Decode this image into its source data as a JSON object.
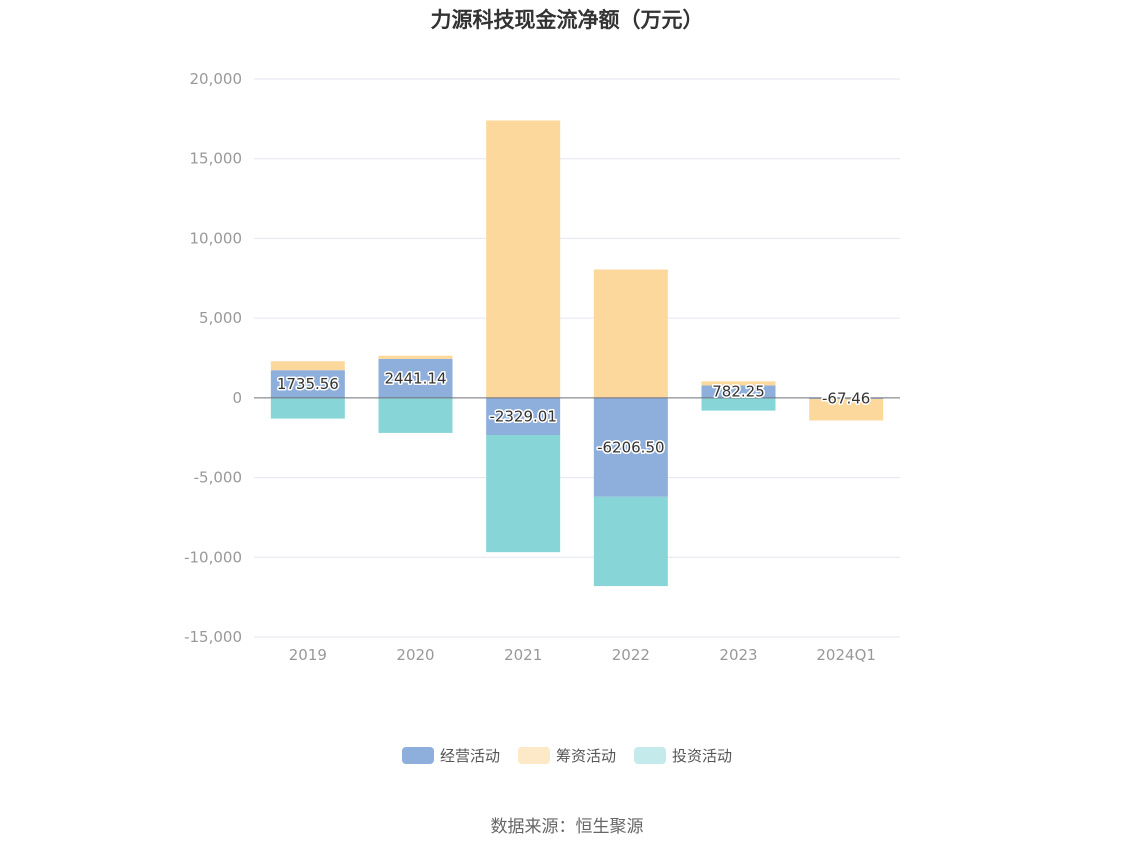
{
  "title": "力源科技现金流净额（万元）",
  "source": "数据来源：恒生聚源",
  "colors": {
    "operating": "#8eaedc",
    "financing": "#fdd89c",
    "investing": "#88d5d8",
    "legend_financing": "#fde8c8",
    "legend_investing": "#c4eaec",
    "grid": "#e3e6ef",
    "zero_line": "#6e7079"
  },
  "legend": [
    {
      "label": "经营活动",
      "color": "#8eaedc"
    },
    {
      "label": "筹资活动",
      "color": "#fde8c8"
    },
    {
      "label": "投资活动",
      "color": "#c4eaec"
    }
  ],
  "chart_data": {
    "type": "bar",
    "stacked": true,
    "title": "力源科技现金流净额（万元）",
    "categories": [
      "2019",
      "2020",
      "2021",
      "2022",
      "2023",
      "2024Q1"
    ],
    "ylim": [
      -15000,
      20000
    ],
    "yticks": [
      20000,
      15000,
      10000,
      5000,
      0,
      -5000,
      -10000,
      -15000
    ],
    "ytick_labels": [
      "20,000",
      "15,000",
      "10,000",
      "5,000",
      "0",
      "-5,000",
      "-10,000",
      "-15,000"
    ],
    "grid": true,
    "legend_position": "bottom",
    "series": [
      {
        "name": "经营活动",
        "key": "operating",
        "values": [
          1735.56,
          2441.14,
          -2329.01,
          -6206.5,
          782.25,
          -67.46
        ]
      },
      {
        "name": "筹资活动",
        "key": "financing",
        "values": [
          560,
          200,
          17400,
          8050,
          250,
          -1350
        ]
      },
      {
        "name": "投资活动",
        "key": "investing",
        "values": [
          -1300,
          -2200,
          -7350,
          -5600,
          -800,
          0
        ]
      }
    ],
    "data_labels": [
      "1735.56",
      "2441.14",
      "-2329.01",
      "-6206.50",
      "782.25",
      "-67.46"
    ]
  }
}
